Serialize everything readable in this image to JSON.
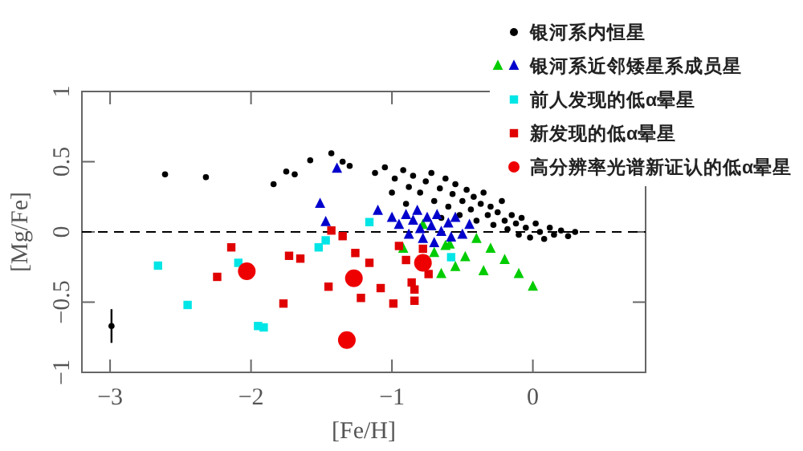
{
  "chart_data": {
    "type": "scatter",
    "xlabel": "[Fe/H]",
    "ylabel": "[Mg/Fe]",
    "xlim": [
      -3.2,
      0.8
    ],
    "ylim": [
      -1,
      1
    ],
    "xticks": [
      {
        "value": -3,
        "label": "−3"
      },
      {
        "value": -2,
        "label": "−2"
      },
      {
        "value": -1,
        "label": "−1"
      },
      0
    ],
    "yticks": [
      {
        "value": -1,
        "label": "−1"
      },
      {
        "value": -0.5,
        "label": "−0.5"
      },
      0,
      0.5,
      1
    ],
    "grid": false,
    "legend": "top right",
    "ref_lines": [
      {
        "axis": "y",
        "value": 0,
        "color": "#000000",
        "line_style": "dashed"
      }
    ],
    "series": [
      {
        "name": "银河系内恒星",
        "color": "#000000",
        "marker": "circle",
        "x": [
          -2.61,
          -2.32,
          -1.84,
          -1.75,
          -1.69,
          -1.58,
          -1.43,
          -1.35,
          -1.3,
          -1.12,
          -1.05,
          -0.98,
          -0.92,
          -0.88,
          -0.85,
          -0.8,
          -0.76,
          -0.72,
          -0.7,
          -0.66,
          -0.62,
          -0.6,
          -0.57,
          -0.55,
          -0.52,
          -0.5,
          -0.47,
          -0.44,
          -0.42,
          -0.4,
          -0.37,
          -0.35,
          -0.32,
          -0.3,
          -0.28,
          -0.25,
          -0.22,
          -0.2,
          -0.18,
          -0.15,
          -0.12,
          -0.1,
          -0.08,
          -0.05,
          -0.02,
          0.02,
          0.05,
          0.08,
          0.12,
          0.15,
          0.2,
          0.25,
          0.3,
          -0.65,
          -0.9,
          -1.0
        ],
        "values": [
          0.41,
          0.39,
          0.34,
          0.43,
          0.41,
          0.51,
          0.56,
          0.5,
          0.47,
          0.42,
          0.46,
          0.38,
          0.44,
          0.32,
          0.4,
          0.28,
          0.36,
          0.42,
          0.22,
          0.31,
          0.38,
          0.18,
          0.27,
          0.34,
          0.12,
          0.22,
          0.3,
          0.16,
          0.25,
          0.08,
          0.2,
          0.28,
          0.12,
          0.18,
          0.05,
          0.14,
          0.22,
          0.08,
          0.02,
          0.12,
          0.06,
          -0.02,
          0.1,
          0.03,
          -0.04,
          0.06,
          0,
          -0.05,
          0.03,
          -0.02,
          0.01,
          -0.03,
          0,
          0.1,
          0.2,
          0.28
        ]
      },
      {
        "name": "银河系近邻矮星系成员星",
        "marker": "triangle",
        "x": [
          -0.92,
          -0.7,
          -0.62,
          -0.59,
          -0.55,
          -0.48,
          -0.4,
          -0.35,
          -0.3,
          -0.2,
          -0.1,
          0.0,
          -0.78,
          -0.65,
          -1.39,
          -1.51,
          -1.47,
          -1.1,
          -1.0,
          -0.95,
          -0.9,
          -0.88,
          -0.85,
          -0.82,
          -0.8,
          -0.78,
          -0.75,
          -0.72,
          -0.7,
          -0.68,
          -0.65,
          -0.6,
          -0.58,
          -0.55,
          -0.5,
          -0.45
        ],
        "values": [
          -0.12,
          -0.15,
          -0.1,
          -0.09,
          -0.25,
          -0.18,
          -0.05,
          -0.28,
          -0.12,
          -0.2,
          -0.3,
          -0.39,
          0.05,
          -0.3,
          0.45,
          0.2,
          0.07,
          0.15,
          0.1,
          0.05,
          0.12,
          -0.02,
          0.08,
          0.15,
          0.02,
          -0.05,
          0.1,
          0.04,
          -0.08,
          0.12,
          0,
          0.06,
          -0.04,
          0.1,
          -0.02,
          0.05
        ],
        "colors": [
          "#00cc00",
          "#00cc00",
          "#00cc00",
          "#00cc00",
          "#00cc00",
          "#00cc00",
          "#00cc00",
          "#00cc00",
          "#00cc00",
          "#00cc00",
          "#00cc00",
          "#00cc00",
          "#00cc00",
          "#00cc00",
          "#0000cc",
          "#0000cc",
          "#0000cc",
          "#0000cc",
          "#0000cc",
          "#0000cc",
          "#0000cc",
          "#0000cc",
          "#0000cc",
          "#0000cc",
          "#0000cc",
          "#0000cc",
          "#0000cc",
          "#0000cc",
          "#0000cc",
          "#0000cc",
          "#0000cc",
          "#0000cc",
          "#0000cc",
          "#0000cc",
          "#0000cc",
          "#0000cc"
        ]
      },
      {
        "name": "前人发现的低α晕星",
        "color": "#00e5e5",
        "marker": "square",
        "x": [
          -2.66,
          -2.45,
          -2.09,
          -1.95,
          -1.91,
          -1.52,
          -1.47,
          -1.16,
          -0.58
        ],
        "values": [
          -0.24,
          -0.52,
          -0.22,
          -0.67,
          -0.68,
          -0.11,
          -0.06,
          0.07,
          -0.18
        ]
      },
      {
        "name": "新发现的低α晕星",
        "color": "#e00000",
        "marker": "square",
        "x": [
          -2.14,
          -2.24,
          -1.77,
          -1.73,
          -1.65,
          -1.45,
          -1.43,
          -1.35,
          -1.26,
          -1.22,
          -1.16,
          -1.08,
          -0.99,
          -0.84,
          -0.84,
          -0.86,
          -0.9,
          -0.78,
          -0.74,
          -0.95
        ],
        "values": [
          -0.11,
          -0.32,
          -0.51,
          -0.17,
          -0.19,
          -0.39,
          0.01,
          -0.03,
          -0.15,
          -0.47,
          -0.22,
          -0.4,
          -0.51,
          -0.49,
          -0.41,
          -0.36,
          -0.2,
          -0.12,
          -0.3,
          -0.1
        ]
      },
      {
        "name": "高分辨率光谱新证认的低α晕星",
        "color": "#ee0000",
        "marker": "circle",
        "x": [
          -2.03,
          -1.27,
          -1.32,
          -0.78
        ],
        "values": [
          -0.28,
          -0.33,
          -0.77,
          -0.22
        ]
      },
      {
        "color": "#000000",
        "marker": "circle",
        "x": [
          -2.99
        ],
        "values": [
          -0.67
        ],
        "errors": [
          0.12
        ]
      }
    ]
  }
}
